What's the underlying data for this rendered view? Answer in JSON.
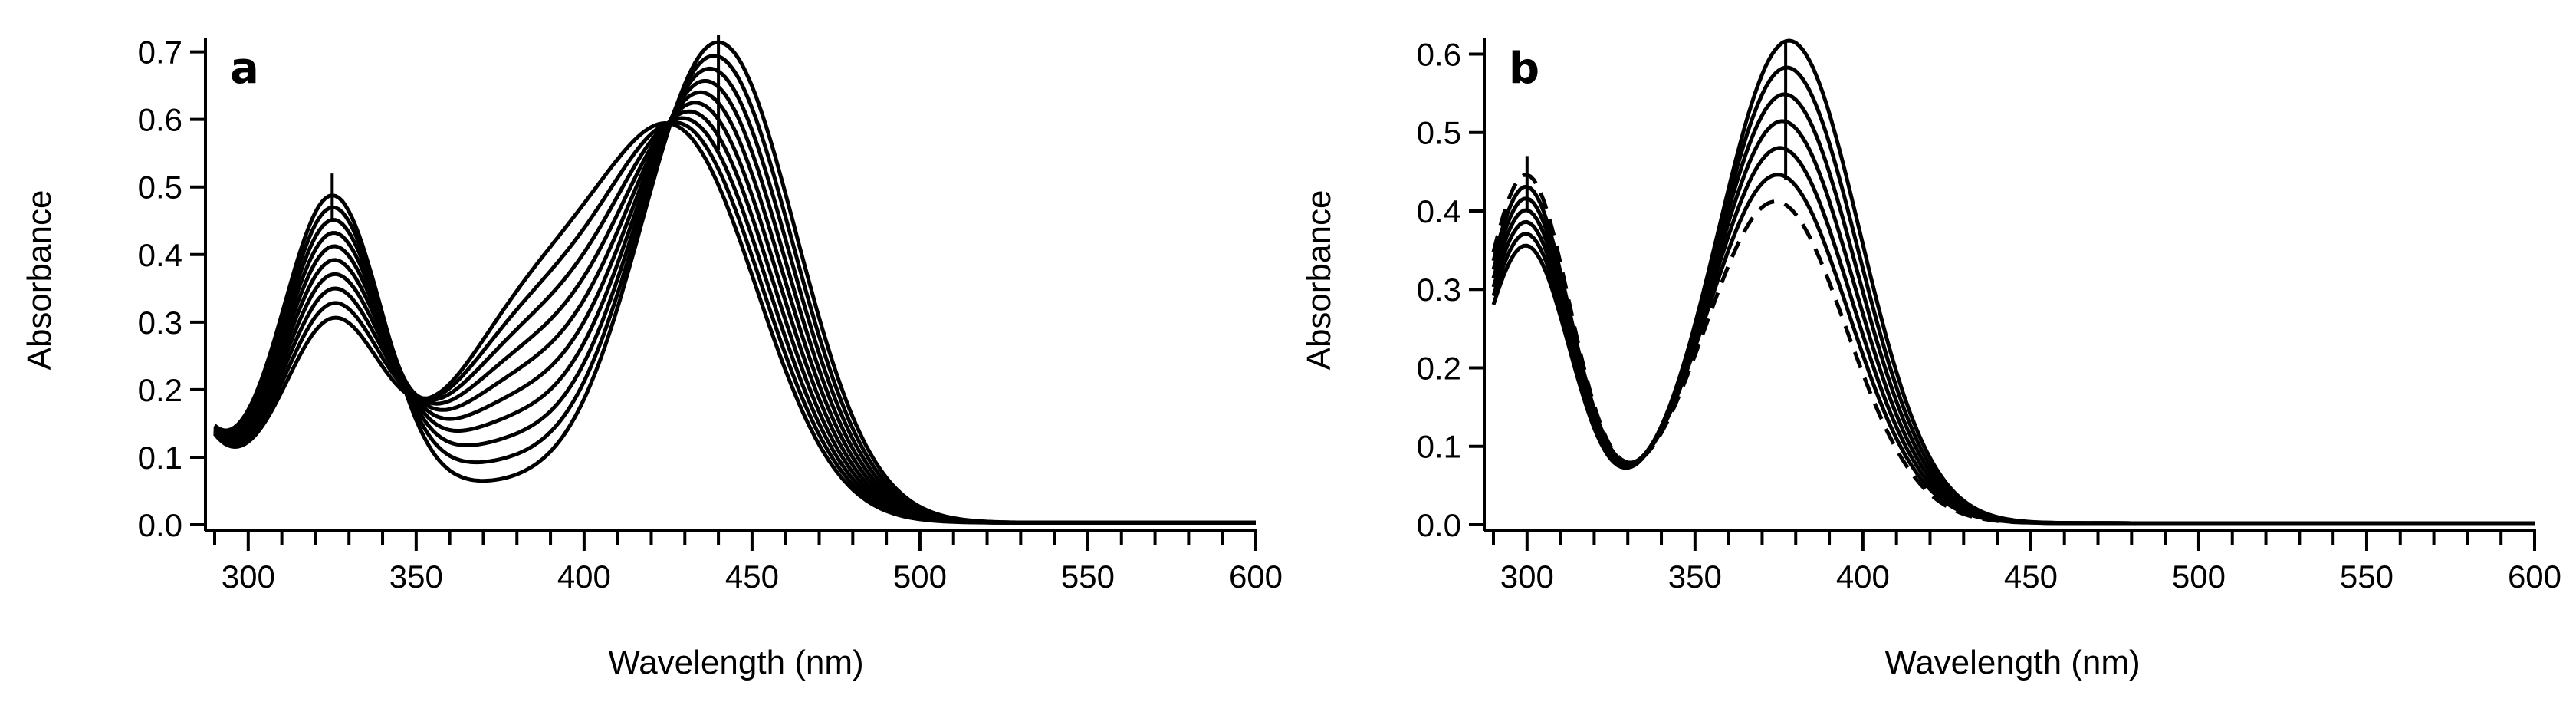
{
  "chart_data": [
    {
      "type": "line",
      "panel_label": "a",
      "xlabel": "Wavelength (nm)",
      "ylabel": "Absorbance",
      "xlim": [
        290,
        600
      ],
      "ylim": [
        0,
        0.72
      ],
      "xticks": [
        300,
        350,
        400,
        450,
        500,
        550,
        600
      ],
      "xtick_labels": [
        "300",
        "350",
        "400",
        "450",
        "500",
        "550",
        "600"
      ],
      "xminor_step": 10,
      "yticks": [
        0.0,
        0.1,
        0.2,
        0.3,
        0.4,
        0.5,
        0.6,
        0.7
      ],
      "ytick_labels": [
        "0.0",
        "0.1",
        "0.2",
        "0.3",
        "0.4",
        "0.5",
        "0.6",
        "0.7"
      ],
      "grid": false,
      "legend": "none",
      "spectra": {
        "count": 10,
        "dashed_index": -1,
        "peaks": [
          {
            "center_start": 325,
            "center_end": 325,
            "width": 15,
            "amp_start": 0.47,
            "amp_end": 0.28
          },
          {
            "center_start": 440,
            "center_end": 430,
            "width": 23,
            "amp_start": 0.71,
            "amp_end": 0.52
          },
          {
            "center_start": 372,
            "center_end": 385,
            "width": 25,
            "amp_start": 0.05,
            "amp_end": 0.3
          }
        ],
        "uv_edge": {
          "amp": 0.22,
          "decay": 12,
          "start": 282
        },
        "baseline": 0.003,
        "range": [
          290,
          600
        ]
      },
      "arrows": [
        {
          "x": 325,
          "y_from": 0.45,
          "y_to": 0.52
        },
        {
          "x": 440,
          "y_from": 0.555,
          "y_to": 0.725
        }
      ]
    },
    {
      "type": "line",
      "panel_label": "b",
      "xlabel": "Wavelength (nm)",
      "ylabel": "Absorbance",
      "xlim": [
        290,
        600
      ],
      "ylim": [
        0,
        0.62
      ],
      "xticks": [
        300,
        350,
        400,
        450,
        500,
        550,
        600
      ],
      "xtick_labels": [
        "300",
        "350",
        "400",
        "450",
        "500",
        "550",
        "600"
      ],
      "xminor_step": 10,
      "yticks": [
        0.0,
        0.1,
        0.2,
        0.3,
        0.4,
        0.5,
        0.6
      ],
      "ytick_labels": [
        "0.0",
        "0.1",
        "0.2",
        "0.3",
        "0.4",
        "0.5",
        "0.6"
      ],
      "grid": false,
      "legend": "none",
      "spectra": {
        "count": 7,
        "dashed_index": 6,
        "peaks": [
          {
            "center_start": 300,
            "center_end": 300,
            "width": 13,
            "amp_start": 0.34,
            "amp_end": 0.43
          },
          {
            "center_start": 378,
            "center_end": 374,
            "width": 21,
            "amp_start": 0.615,
            "amp_end": 0.41
          }
        ],
        "uv_edge": {
          "amp": 0.05,
          "decay": 15,
          "start": 280
        },
        "baseline": 0.002,
        "range": [
          290,
          600
        ]
      },
      "arrows": [
        {
          "x": 300,
          "y_from": 0.4,
          "y_to": 0.47
        },
        {
          "x": 377,
          "y_from": 0.44,
          "y_to": 0.615
        }
      ]
    }
  ]
}
